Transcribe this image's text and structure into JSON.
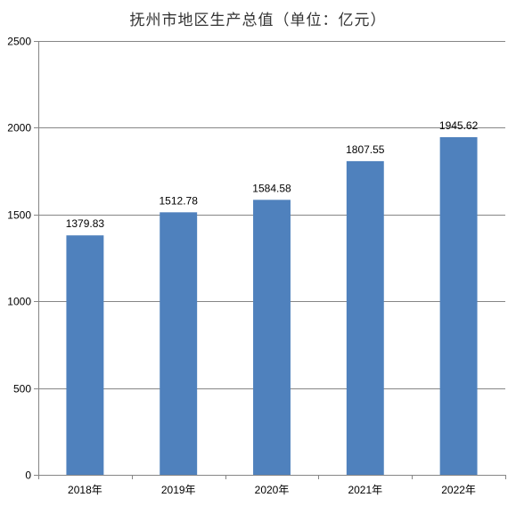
{
  "chart_data": {
    "type": "bar",
    "title": "抚州市地区生产总值（单位：亿元）",
    "categories": [
      "2018年",
      "2019年",
      "2020年",
      "2021年",
      "2022年"
    ],
    "values": [
      1379.83,
      1512.78,
      1584.58,
      1807.55,
      1945.62
    ],
    "data_labels": [
      "1379.83",
      "1512.78",
      "1584.58",
      "1807.55",
      "1945.62"
    ],
    "y_ticks": [
      0,
      500,
      1000,
      1500,
      2000,
      2500
    ],
    "ylim": [
      0,
      2500
    ],
    "grid": true,
    "legend": "none",
    "bar_color": "#4f81bd",
    "grid_color": "#868686",
    "text_color": "#000000"
  }
}
